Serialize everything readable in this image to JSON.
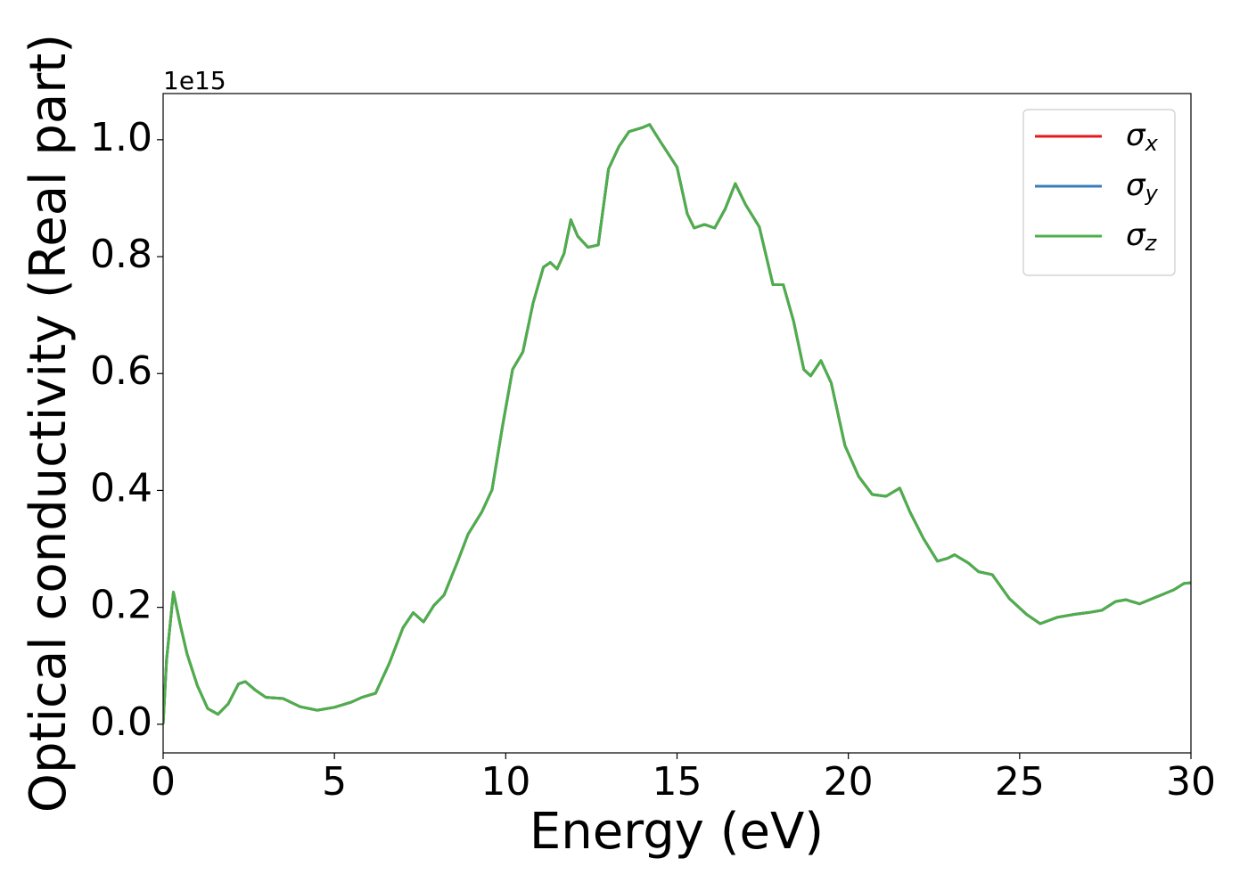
{
  "chart_data": {
    "type": "line",
    "xlabel": "Energy (eV)",
    "ylabel": "Optical conductivity (Real part)",
    "offset_text": "1e15",
    "x": [
      0,
      0.1,
      0.3,
      0.5,
      0.7,
      1.0,
      1.3,
      1.6,
      1.9,
      2.2,
      2.4,
      2.7,
      3.0,
      3.5,
      4.0,
      4.5,
      5.0,
      5.5,
      5.8,
      6.2,
      6.6,
      7.0,
      7.3,
      7.6,
      7.9,
      8.2,
      8.6,
      8.9,
      9.3,
      9.6,
      9.9,
      10.2,
      10.5,
      10.8,
      11.1,
      11.3,
      11.5,
      11.7,
      11.9,
      12.1,
      12.4,
      12.7,
      13.0,
      13.3,
      13.6,
      14.0,
      14.2,
      14.5,
      15.0,
      15.3,
      15.5,
      15.8,
      16.1,
      16.4,
      16.7,
      17.0,
      17.4,
      17.8,
      18.1,
      18.4,
      18.7,
      18.9,
      19.2,
      19.5,
      19.9,
      20.3,
      20.7,
      21.1,
      21.5,
      21.8,
      22.2,
      22.6,
      22.9,
      23.1,
      23.5,
      23.8,
      24.2,
      24.7,
      25.2,
      25.6,
      26.1,
      26.6,
      27.0,
      27.4,
      27.8,
      28.1,
      28.5,
      29.0,
      29.5,
      29.8,
      30.0
    ],
    "series": [
      {
        "name": "σx",
        "color": "#e41a1c",
        "values": [
          0.0,
          0.11,
          0.226,
          0.17,
          0.12,
          0.066,
          0.027,
          0.017,
          0.035,
          0.069,
          0.073,
          0.058,
          0.046,
          0.044,
          0.03,
          0.024,
          0.029,
          0.038,
          0.046,
          0.053,
          0.104,
          0.165,
          0.191,
          0.175,
          0.203,
          0.221,
          0.279,
          0.325,
          0.363,
          0.401,
          0.508,
          0.607,
          0.637,
          0.721,
          0.782,
          0.79,
          0.779,
          0.805,
          0.863,
          0.835,
          0.816,
          0.82,
          0.95,
          0.988,
          1.014,
          1.021,
          1.026,
          0.998,
          0.953,
          0.873,
          0.849,
          0.855,
          0.849,
          0.881,
          0.925,
          0.889,
          0.851,
          0.752,
          0.752,
          0.69,
          0.607,
          0.596,
          0.622,
          0.584,
          0.477,
          0.424,
          0.393,
          0.39,
          0.404,
          0.363,
          0.317,
          0.279,
          0.284,
          0.29,
          0.276,
          0.261,
          0.256,
          0.215,
          0.188,
          0.172,
          0.183,
          0.188,
          0.191,
          0.195,
          0.21,
          0.213,
          0.206,
          0.218,
          0.23,
          0.241,
          0.242
        ]
      },
      {
        "name": "σy",
        "color": "#377eb8",
        "values": [
          0.0,
          0.11,
          0.226,
          0.17,
          0.12,
          0.066,
          0.027,
          0.017,
          0.035,
          0.069,
          0.073,
          0.058,
          0.046,
          0.044,
          0.03,
          0.024,
          0.029,
          0.038,
          0.046,
          0.053,
          0.104,
          0.165,
          0.191,
          0.175,
          0.203,
          0.221,
          0.279,
          0.325,
          0.363,
          0.401,
          0.508,
          0.607,
          0.637,
          0.721,
          0.782,
          0.79,
          0.779,
          0.805,
          0.863,
          0.835,
          0.816,
          0.82,
          0.95,
          0.988,
          1.014,
          1.021,
          1.026,
          0.998,
          0.953,
          0.873,
          0.849,
          0.855,
          0.849,
          0.881,
          0.925,
          0.889,
          0.851,
          0.752,
          0.752,
          0.69,
          0.607,
          0.596,
          0.622,
          0.584,
          0.477,
          0.424,
          0.393,
          0.39,
          0.404,
          0.363,
          0.317,
          0.279,
          0.284,
          0.29,
          0.276,
          0.261,
          0.256,
          0.215,
          0.188,
          0.172,
          0.183,
          0.188,
          0.191,
          0.195,
          0.21,
          0.213,
          0.206,
          0.218,
          0.23,
          0.241,
          0.242
        ]
      },
      {
        "name": "σz",
        "color": "#4daf4a",
        "values": [
          0.0,
          0.11,
          0.226,
          0.17,
          0.12,
          0.066,
          0.027,
          0.017,
          0.035,
          0.069,
          0.073,
          0.058,
          0.046,
          0.044,
          0.03,
          0.024,
          0.029,
          0.038,
          0.046,
          0.053,
          0.104,
          0.165,
          0.191,
          0.175,
          0.203,
          0.221,
          0.279,
          0.325,
          0.363,
          0.401,
          0.508,
          0.607,
          0.637,
          0.721,
          0.782,
          0.79,
          0.779,
          0.805,
          0.863,
          0.835,
          0.816,
          0.82,
          0.95,
          0.988,
          1.014,
          1.021,
          1.026,
          0.998,
          0.953,
          0.873,
          0.849,
          0.855,
          0.849,
          0.881,
          0.925,
          0.889,
          0.851,
          0.752,
          0.752,
          0.69,
          0.607,
          0.596,
          0.622,
          0.584,
          0.477,
          0.424,
          0.393,
          0.39,
          0.404,
          0.363,
          0.317,
          0.279,
          0.284,
          0.29,
          0.276,
          0.261,
          0.256,
          0.215,
          0.188,
          0.172,
          0.183,
          0.188,
          0.191,
          0.195,
          0.21,
          0.213,
          0.206,
          0.218,
          0.23,
          0.241,
          0.242
        ]
      }
    ],
    "xlim": [
      0,
      30
    ],
    "xticks": [
      0,
      5,
      10,
      15,
      20,
      25,
      30
    ],
    "ylim": [
      -0.049,
      1.079
    ],
    "yticks": [
      {
        "value": 0,
        "label": "0.0"
      },
      0.2,
      0.4,
      0.6,
      0.8,
      {
        "value": 1,
        "label": "1.0"
      }
    ],
    "legend": "upper right",
    "grid": false
  }
}
